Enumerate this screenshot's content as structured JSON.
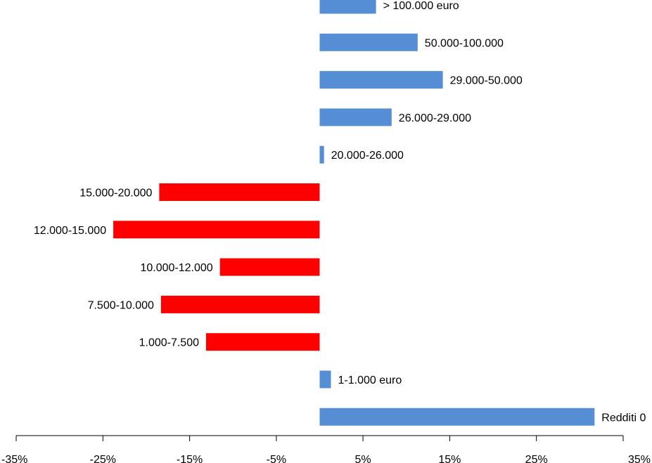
{
  "chart_data": {
    "type": "bar",
    "orientation": "horizontal",
    "categories": [
      "> 100.000 euro",
      "50.000-100.000",
      "29.000-50.000",
      "26.000-29.000",
      "20.000-26.000",
      "15.000-20.000",
      "12.000-15.000",
      "10.000-12.000",
      "7.500-10.000",
      "1.000-7.500",
      "1-1.000 euro",
      "Redditi 0"
    ],
    "values": [
      6.5,
      11.3,
      14.2,
      8.3,
      0.5,
      -18.5,
      -23.8,
      -11.5,
      -18.3,
      -13.1,
      1.3,
      31.7
    ],
    "xlim": [
      -35,
      35
    ],
    "xticks": [
      -35,
      -25,
      -15,
      -5,
      5,
      15,
      25,
      35
    ],
    "xtick_labels": [
      "-35%",
      "-25%",
      "-15%",
      "-5%",
      "5%",
      "15%",
      "25%",
      "35%"
    ],
    "colors": {
      "positive": "#558ED5",
      "negative": "#FF0000",
      "axis": "#000000"
    },
    "grid": false,
    "legend": "none",
    "title": "",
    "xlabel": "",
    "ylabel": ""
  }
}
